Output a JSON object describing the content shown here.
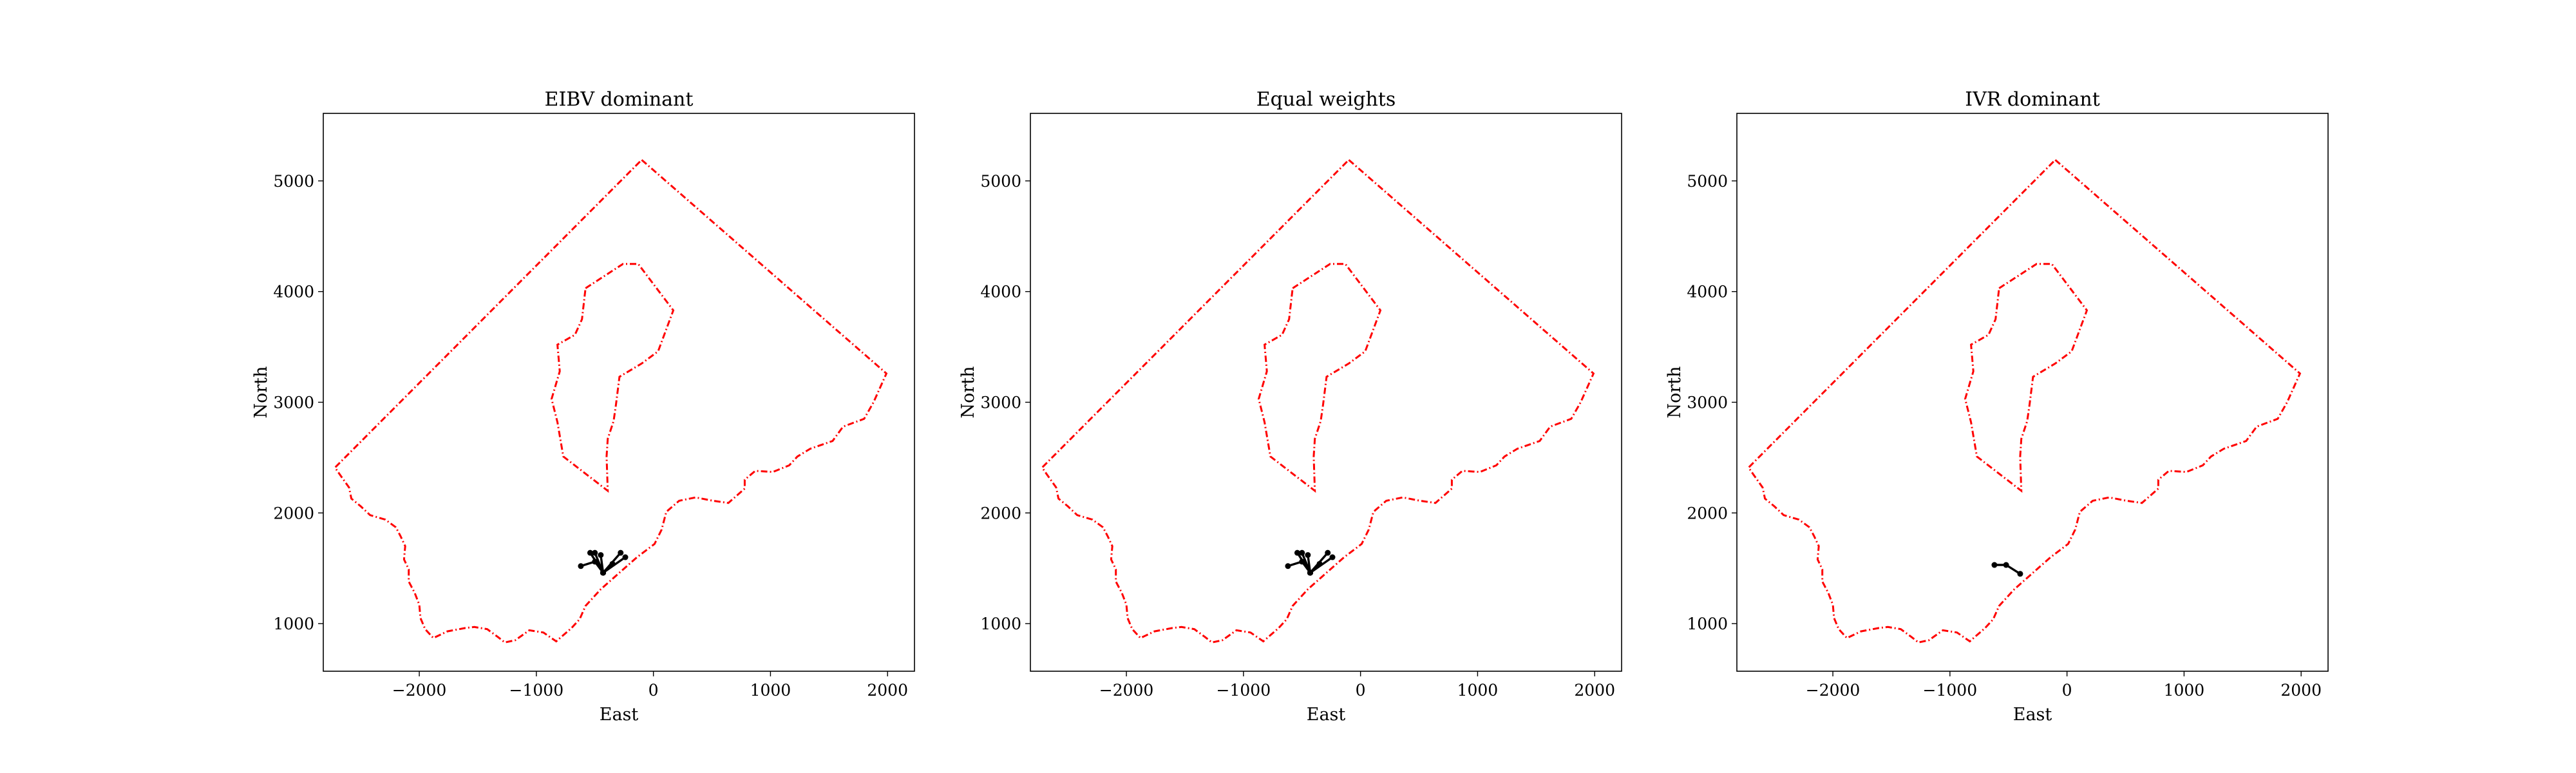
{
  "chart_data": [
    {
      "type": "line",
      "title": "EIBV dominant",
      "xlabel": "East",
      "ylabel": "North",
      "xlim": [
        -2820,
        2230
      ],
      "ylim": [
        570,
        5610
      ],
      "xticks": [
        -2000,
        -1000,
        0,
        1000,
        2000
      ],
      "yticks": [
        1000,
        2000,
        3000,
        4000,
        5000
      ],
      "xtick_labels": [
        "−2000",
        "−1000",
        "0",
        "1000",
        "2000"
      ],
      "ytick_labels": [
        "1000",
        "2000",
        "3000",
        "4000",
        "5000"
      ],
      "grid": false,
      "boundary_color": "#ff0000",
      "path_color": "#000000",
      "path_segments": [
        [
          [
            -620,
            1520
          ],
          [
            -500,
            1560
          ],
          [
            -430,
            1460
          ]
        ],
        [
          [
            -540,
            1640
          ],
          [
            -430,
            1460
          ]
        ],
        [
          [
            -500,
            1640
          ],
          [
            -430,
            1460
          ]
        ],
        [
          [
            -450,
            1620
          ],
          [
            -430,
            1460
          ]
        ],
        [
          [
            -430,
            1460
          ],
          [
            -350,
            1540
          ]
        ],
        [
          [
            -430,
            1460
          ],
          [
            -280,
            1640
          ]
        ],
        [
          [
            -430,
            1460
          ],
          [
            -240,
            1600
          ]
        ]
      ]
    },
    {
      "type": "line",
      "title": "Equal weights",
      "xlabel": "East",
      "ylabel": "North",
      "xlim": [
        -2820,
        2230
      ],
      "ylim": [
        570,
        5610
      ],
      "xticks": [
        -2000,
        -1000,
        0,
        1000,
        2000
      ],
      "yticks": [
        1000,
        2000,
        3000,
        4000,
        5000
      ],
      "xtick_labels": [
        "−2000",
        "−1000",
        "0",
        "1000",
        "2000"
      ],
      "ytick_labels": [
        "1000",
        "2000",
        "3000",
        "4000",
        "5000"
      ],
      "grid": false,
      "boundary_color": "#ff0000",
      "path_color": "#000000",
      "path_segments": [
        [
          [
            -620,
            1520
          ],
          [
            -500,
            1560
          ],
          [
            -430,
            1460
          ]
        ],
        [
          [
            -540,
            1640
          ],
          [
            -430,
            1460
          ]
        ],
        [
          [
            -500,
            1640
          ],
          [
            -430,
            1460
          ]
        ],
        [
          [
            -450,
            1620
          ],
          [
            -430,
            1460
          ]
        ],
        [
          [
            -430,
            1460
          ],
          [
            -350,
            1540
          ]
        ],
        [
          [
            -430,
            1460
          ],
          [
            -280,
            1640
          ]
        ],
        [
          [
            -430,
            1460
          ],
          [
            -240,
            1600
          ]
        ]
      ]
    },
    {
      "type": "line",
      "title": "IVR dominant",
      "xlabel": "East",
      "ylabel": "North",
      "xlim": [
        -2820,
        2230
      ],
      "ylim": [
        570,
        5610
      ],
      "xticks": [
        -2000,
        -1000,
        0,
        1000,
        2000
      ],
      "yticks": [
        1000,
        2000,
        3000,
        4000,
        5000
      ],
      "xtick_labels": [
        "−2000",
        "−1000",
        "0",
        "1000",
        "2000"
      ],
      "ytick_labels": [
        "1000",
        "2000",
        "3000",
        "4000",
        "5000"
      ],
      "grid": false,
      "boundary_color": "#ff0000",
      "path_color": "#000000",
      "path_segments": [
        [
          [
            -620,
            1530
          ],
          [
            -520,
            1530
          ],
          [
            -400,
            1450
          ]
        ]
      ]
    }
  ],
  "boundary": {
    "outer": [
      [
        -100,
        5190
      ],
      [
        1990,
        3260
      ],
      [
        1880,
        3000
      ],
      [
        1800,
        2850
      ],
      [
        1620,
        2780
      ],
      [
        1530,
        2650
      ],
      [
        1340,
        2580
      ],
      [
        1230,
        2510
      ],
      [
        1160,
        2430
      ],
      [
        1020,
        2370
      ],
      [
        870,
        2380
      ],
      [
        780,
        2300
      ],
      [
        780,
        2220
      ],
      [
        640,
        2090
      ],
      [
        510,
        2110
      ],
      [
        360,
        2140
      ],
      [
        220,
        2110
      ],
      [
        110,
        2010
      ],
      [
        70,
        1850
      ],
      [
        10,
        1720
      ],
      [
        -140,
        1600
      ],
      [
        -280,
        1470
      ],
      [
        -450,
        1310
      ],
      [
        -580,
        1160
      ],
      [
        -630,
        1040
      ],
      [
        -700,
        960
      ],
      [
        -830,
        840
      ],
      [
        -940,
        920
      ],
      [
        -1060,
        940
      ],
      [
        -1180,
        850
      ],
      [
        -1270,
        830
      ],
      [
        -1330,
        880
      ],
      [
        -1420,
        950
      ],
      [
        -1530,
        970
      ],
      [
        -1610,
        960
      ],
      [
        -1760,
        930
      ],
      [
        -1880,
        870
      ],
      [
        -1950,
        950
      ],
      [
        -1990,
        1050
      ],
      [
        -2000,
        1170
      ],
      [
        -2040,
        1280
      ],
      [
        -2090,
        1380
      ],
      [
        -2090,
        1490
      ],
      [
        -2130,
        1580
      ],
      [
        -2120,
        1700
      ],
      [
        -2160,
        1790
      ],
      [
        -2200,
        1870
      ],
      [
        -2290,
        1940
      ],
      [
        -2420,
        1980
      ],
      [
        -2500,
        2060
      ],
      [
        -2580,
        2130
      ],
      [
        -2600,
        2230
      ],
      [
        -2680,
        2350
      ],
      [
        -2720,
        2410
      ],
      [
        -100,
        5190
      ]
    ],
    "island": [
      [
        -580,
        4030
      ],
      [
        -260,
        4250
      ],
      [
        -130,
        4250
      ],
      [
        170,
        3830
      ],
      [
        40,
        3460
      ],
      [
        -100,
        3350
      ],
      [
        -290,
        3230
      ],
      [
        -320,
        2980
      ],
      [
        -340,
        2830
      ],
      [
        -390,
        2670
      ],
      [
        -400,
        2510
      ],
      [
        -390,
        2200
      ],
      [
        -770,
        2510
      ],
      [
        -820,
        2820
      ],
      [
        -870,
        3030
      ],
      [
        -800,
        3280
      ],
      [
        -820,
        3520
      ],
      [
        -670,
        3610
      ],
      [
        -610,
        3750
      ],
      [
        -580,
        4030
      ]
    ]
  }
}
